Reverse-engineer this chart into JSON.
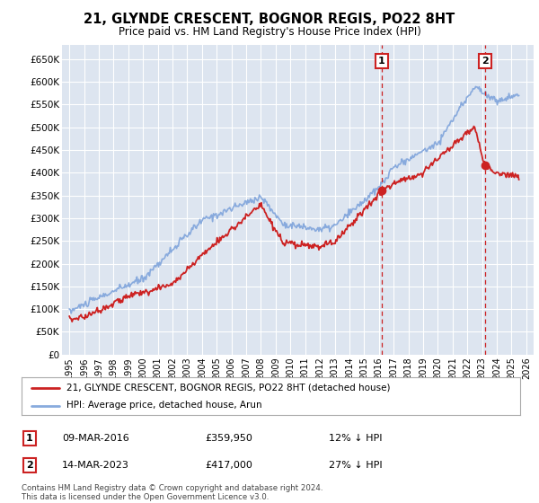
{
  "title": "21, GLYNDE CRESCENT, BOGNOR REGIS, PO22 8HT",
  "subtitle": "Price paid vs. HM Land Registry's House Price Index (HPI)",
  "legend_line1": "21, GLYNDE CRESCENT, BOGNOR REGIS, PO22 8HT (detached house)",
  "legend_line2": "HPI: Average price, detached house, Arun",
  "marker1_date": "09-MAR-2016",
  "marker1_price": 359950,
  "marker1_price_str": "£359,950",
  "marker1_pct": "12% ↓ HPI",
  "marker2_date": "14-MAR-2023",
  "marker2_price": 417000,
  "marker2_price_str": "£417,000",
  "marker2_pct": "27% ↓ HPI",
  "footer": "Contains HM Land Registry data © Crown copyright and database right 2024.\nThis data is licensed under the Open Government Licence v3.0.",
  "ylim": [
    0,
    680000
  ],
  "yticks": [
    0,
    50000,
    100000,
    150000,
    200000,
    250000,
    300000,
    350000,
    400000,
    450000,
    500000,
    550000,
    600000,
    650000
  ],
  "background_color": "#dde5f0",
  "grid_color": "#ffffff",
  "red_color": "#cc2222",
  "blue_color": "#88aadd",
  "marker1_x_year": 2016.19,
  "marker2_x_year": 2023.2,
  "marker1_y": 359950,
  "marker2_y": 417000,
  "xmin": 1994.5,
  "xmax": 2026.5,
  "x_start": 1995,
  "x_end": 2026
}
